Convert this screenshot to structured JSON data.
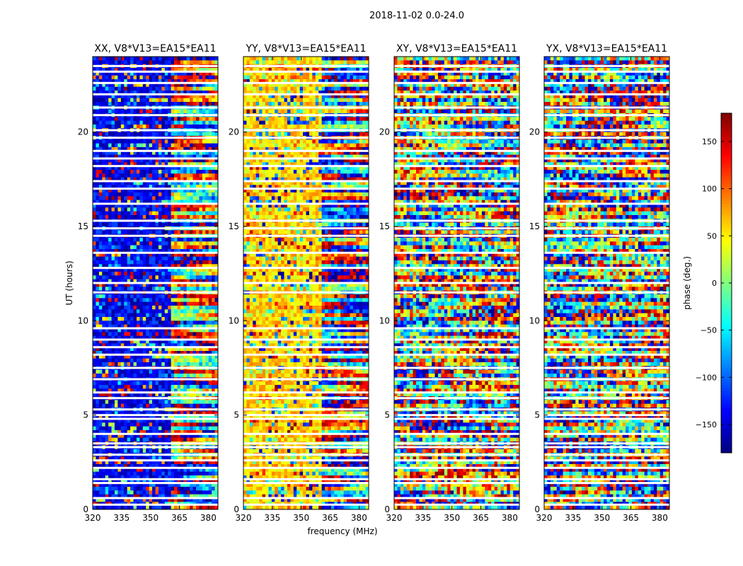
{
  "figure": {
    "suptitle": "2018-11-02 0.0-24.0"
  },
  "chart_data": {
    "type": "heatmap",
    "xlabel": "frequency (MHz)",
    "ylabel": "UT (hours)",
    "xlim": [
      320,
      385
    ],
    "ylim": [
      0,
      24
    ],
    "xticks": [
      320,
      335,
      350,
      365,
      380
    ],
    "yticks": [
      0,
      5,
      10,
      15,
      20
    ],
    "colorbar": {
      "label": "phase (deg.)",
      "range": [
        -180,
        180
      ],
      "ticks": [
        -150,
        -100,
        -50,
        0,
        50,
        100,
        150
      ],
      "colormap": "jet",
      "colors": [
        "#00007f",
        "#0000ff",
        "#007fff",
        "#00ffff",
        "#7fff7f",
        "#ffff00",
        "#ff7f00",
        "#ff0000",
        "#7f0000"
      ]
    },
    "panels": [
      {
        "title": "XX, V8*V13=EA15*EA11",
        "phase_bias": -140,
        "noise": 0.55
      },
      {
        "title": "YY, V8*V13=EA15*EA11",
        "phase_bias": 60,
        "noise": 0.55
      },
      {
        "title": "XY, V8*V13=EA15*EA11",
        "phase_bias": null,
        "noise": 1.0
      },
      {
        "title": "YX, V8*V13=EA15*EA11",
        "phase_bias": null,
        "noise": 1.0
      }
    ],
    "flagged_rows_ut": [
      0.25,
      0.6,
      1.4,
      1.6,
      2.2,
      2.6,
      2.9,
      3.3,
      3.5,
      4.0,
      4.8,
      5.0,
      5.3,
      5.9,
      6.2,
      6.9,
      7.5,
      8.2,
      8.6,
      9.0,
      9.6,
      11.5,
      12.0,
      12.8,
      13.6,
      14.5,
      14.9,
      15.3,
      16.2,
      17.0,
      17.4,
      18.2,
      18.6,
      19.0,
      19.7,
      20.1,
      20.9,
      21.3,
      22.0,
      22.6,
      23.2,
      23.5
    ]
  }
}
